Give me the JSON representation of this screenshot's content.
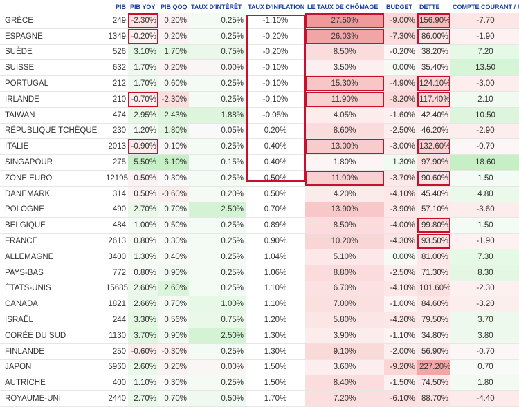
{
  "headers": {
    "pib": "PIB",
    "pib_yoy": "PIB YOY",
    "pib_qoq": "PIB QOQ",
    "taux_interet": "TAUX D'INTÉRÊT",
    "taux_inflation": "TAUX D'INFLATION",
    "chomage": "LE TAUX DE CHÔMAGE",
    "budget": "BUDGET",
    "dette": "DETTE",
    "compte_courant": "COMPTE COURANT / PIB"
  },
  "rows": [
    {
      "pays": "GRÈCE",
      "pib": "249",
      "yoy": "-2.30%",
      "qoq": "0.20%",
      "taux": "0.25%",
      "infl": "-1.10%",
      "chomage": "27.50%",
      "budget": "-9.00%",
      "dette": "156.90%",
      "cc": "-7.70",
      "c": {
        "yoy": "#fde3e3",
        "qoq": "#fbf3f3",
        "taux": "#f4fbf4",
        "chomage": "#f0999b",
        "budget": "#fcd6d6",
        "dette": "#f9bcbc",
        "cc": "#fde6e6"
      },
      "b": {
        "yoy": true,
        "chomage": true,
        "dette": true
      }
    },
    {
      "pays": "ESPAGNE",
      "pib": "1349",
      "yoy": "-0.20%",
      "qoq": "0.20%",
      "taux": "0.25%",
      "infl": "-0.20%",
      "chomage": "26.03%",
      "budget": "-7.30%",
      "dette": "86.00%",
      "cc": "-1.90",
      "c": {
        "yoy": "#fdf2f2",
        "qoq": "#fbf3f3",
        "taux": "#f4fbf4",
        "chomage": "#f2a5a6",
        "budget": "#fcdcdc",
        "dette": "#fde5e5",
        "cc": "#fdf1f1"
      },
      "b": {
        "yoy": true,
        "chomage": true,
        "dette": true
      }
    },
    {
      "pays": "SUÈDE",
      "pib": "526",
      "yoy": "3.10%",
      "qoq": "1.70%",
      "taux": "0.75%",
      "infl": "-0.20%",
      "chomage": "8.50%",
      "budget": "-0.20%",
      "dette": "38.20%",
      "cc": "7.20",
      "c": {
        "yoy": "#e5f8e5",
        "qoq": "#e4f8e4",
        "taux": "#e9f8e9",
        "chomage": "#fbdcdc",
        "budget": "#fdf6f6",
        "dette": "#fdf2f2",
        "cc": "#e6f8e6"
      },
      "b": {}
    },
    {
      "pays": "SUISSE",
      "pib": "632",
      "yoy": "1.70%",
      "qoq": "0.20%",
      "taux": "0.00%",
      "infl": "-0.10%",
      "chomage": "3.50%",
      "budget": "0.00%",
      "dette": "35.40%",
      "cc": "13.50",
      "c": {
        "yoy": "#eff9ef",
        "qoq": "#fbf3f3",
        "taux": "#fbf6f6",
        "chomage": "#fcefef",
        "budget": "#f5faf5",
        "dette": "#fdf3f3",
        "cc": "#d6f4d6"
      },
      "b": {}
    },
    {
      "pays": "PORTUGAL",
      "pib": "212",
      "yoy": "1.70%",
      "qoq": "0.60%",
      "taux": "0.25%",
      "infl": "-0.10%",
      "chomage": "15.30%",
      "budget": "-4.90%",
      "dette": "124.10%",
      "cc": "-3.00",
      "c": {
        "yoy": "#eff9ef",
        "qoq": "#f5faf5",
        "taux": "#f4fbf4",
        "chomage": "#f8c6c6",
        "budget": "#fce3e3",
        "dette": "#fbd3d3",
        "cc": "#fdeeee"
      },
      "b": {
        "chomage": true,
        "dette": true
      }
    },
    {
      "pays": "IRLANDE",
      "pib": "210",
      "yoy": "-0.70%",
      "qoq": "-2.30%",
      "taux": "0.25%",
      "infl": "-0.10%",
      "chomage": "11.90%",
      "budget": "-8.20%",
      "dette": "117.40%",
      "cc": "2.10",
      "c": {
        "yoy": "#fdeded",
        "qoq": "#fbdede",
        "taux": "#f4fbf4",
        "chomage": "#f9d0d0",
        "budget": "#fcd9d9",
        "dette": "#fbd7d7",
        "cc": "#f1faf1"
      },
      "b": {
        "yoy": true,
        "chomage": true,
        "dette": true
      }
    },
    {
      "pays": "TAIWAN",
      "pib": "474",
      "yoy": "2.95%",
      "qoq": "2.43%",
      "taux": "1.88%",
      "infl": "-0.05%",
      "chomage": "4.05%",
      "budget": "-1.60%",
      "dette": "42.40%",
      "cc": "10.50",
      "c": {
        "yoy": "#e7f8e7",
        "qoq": "#dcf5dc",
        "taux": "#dcf5dc",
        "chomage": "#fcecec",
        "budget": "#fdf0f0",
        "dette": "#fdf0f0",
        "cc": "#dcf5dc"
      },
      "b": {}
    },
    {
      "pays": "RÉPUBLIQUE TCHÈQUE",
      "pib": "230",
      "yoy": "1.20%",
      "qoq": "1.80%",
      "taux": "0.05%",
      "infl": "0.20%",
      "chomage": "8.60%",
      "budget": "-2.50%",
      "dette": "46.20%",
      "cc": "-2.90",
      "c": {
        "yoy": "#f2faf2",
        "qoq": "#e3f7e3",
        "taux": "#f9f9f9",
        "chomage": "#fbdcdc",
        "budget": "#fdeded",
        "dette": "#fdeeee",
        "cc": "#fdeeee"
      },
      "b": {}
    },
    {
      "pays": "ITALIE",
      "pib": "2013",
      "yoy": "-0.90%",
      "qoq": "0.10%",
      "taux": "0.25%",
      "infl": "0.40%",
      "chomage": "13.00%",
      "budget": "-3.00%",
      "dette": "132.60%",
      "cc": "-0.70",
      "c": {
        "yoy": "#fdeaea",
        "qoq": "#f9f6f6",
        "taux": "#f4fbf4",
        "chomage": "#f9cccc",
        "budget": "#fdebeb",
        "dette": "#fbcfcf",
        "cc": "#fdf6f6"
      },
      "b": {
        "yoy": true,
        "chomage": true,
        "dette": true
      }
    },
    {
      "pays": "SINGAPOUR",
      "pib": "275",
      "yoy": "5.50%",
      "qoq": "6.10%",
      "taux": "0.15%",
      "infl": "0.40%",
      "chomage": "1.80%",
      "budget": "1.30%",
      "dette": "97.90%",
      "cc": "18.60",
      "c": {
        "yoy": "#c8f0c8",
        "qoq": "#c6efc6",
        "taux": "#f7fbf7",
        "chomage": "#fdf5f5",
        "budget": "#f1faf1",
        "dette": "#fce0e0",
        "cc": "#c6efc6"
      },
      "b": {}
    },
    {
      "pays": "ZONE EURO",
      "pib": "12195",
      "yoy": "0.50%",
      "qoq": "0.30%",
      "taux": "0.25%",
      "infl": "0.50%",
      "chomage": "11.90%",
      "budget": "-3.70%",
      "dette": "90.60%",
      "cc": "1.50",
      "c": {
        "yoy": "#fbf3f3",
        "qoq": "#f8f9f8",
        "taux": "#f4fbf4",
        "chomage": "#f9d0d0",
        "budget": "#fde8e8",
        "dette": "#fce3e3",
        "cc": "#f4fbf4"
      },
      "b": {
        "chomage": true,
        "dette": true
      }
    },
    {
      "pays": "DANEMARK",
      "pib": "314",
      "yoy": "0.50%",
      "qoq": "-0.60%",
      "taux": "0.20%",
      "infl": "0.50%",
      "chomage": "4.20%",
      "budget": "-4.10%",
      "dette": "45.40%",
      "cc": "4.80",
      "c": {
        "yoy": "#fbf3f3",
        "qoq": "#fdeeee",
        "taux": "#f5faf5",
        "chomage": "#fcebeb",
        "budget": "#fde6e6",
        "dette": "#fdefef",
        "cc": "#ebf9eb"
      },
      "b": {}
    },
    {
      "pays": "POLOGNE",
      "pib": "490",
      "yoy": "2.70%",
      "qoq": "0.70%",
      "taux": "2.50%",
      "infl": "0.70%",
      "chomage": "13.90%",
      "budget": "-3.90%",
      "dette": "57.10%",
      "cc": "-3.60",
      "c": {
        "yoy": "#e9f8e9",
        "qoq": "#f3faf3",
        "taux": "#d4f3d4",
        "chomage": "#f8c8c8",
        "budget": "#fde7e7",
        "dette": "#fdebeb",
        "cc": "#fdecec"
      },
      "b": {}
    },
    {
      "pays": "BELGIQUE",
      "pib": "484",
      "yoy": "1.00%",
      "qoq": "0.50%",
      "taux": "0.25%",
      "infl": "0.89%",
      "chomage": "8.50%",
      "budget": "-4.00%",
      "dette": "99.80%",
      "cc": "1.50",
      "c": {
        "yoy": "#f4faf4",
        "qoq": "#f6f9f6",
        "taux": "#f4fbf4",
        "chomage": "#fbdcdc",
        "budget": "#fde6e6",
        "dette": "#fce0e0",
        "cc": "#f4fbf4"
      },
      "b": {
        "dette": true
      }
    },
    {
      "pays": "FRANCE",
      "pib": "2613",
      "yoy": "0.80%",
      "qoq": "0.30%",
      "taux": "0.25%",
      "infl": "0.90%",
      "chomage": "10.20%",
      "budget": "-4.30%",
      "dette": "93.50%",
      "cc": "-1.90",
      "c": {
        "yoy": "#f7f9f7",
        "qoq": "#f8f9f8",
        "taux": "#f4fbf4",
        "chomage": "#fad5d5",
        "budget": "#fde5e5",
        "dette": "#fce2e2",
        "cc": "#fdf1f1"
      },
      "b": {
        "dette": true
      }
    },
    {
      "pays": "ALLEMAGNE",
      "pib": "3400",
      "yoy": "1.30%",
      "qoq": "0.40%",
      "taux": "0.25%",
      "infl": "1.04%",
      "chomage": "5.10%",
      "budget": "0.00%",
      "dette": "81.00%",
      "cc": "7.30",
      "c": {
        "yoy": "#f2faf2",
        "qoq": "#f7f9f7",
        "taux": "#f4fbf4",
        "chomage": "#fce8e8",
        "budget": "#f5faf5",
        "dette": "#fde7e7",
        "cc": "#e6f8e6"
      },
      "b": {}
    },
    {
      "pays": "PAYS-BAS",
      "pib": "772",
      "yoy": "0.80%",
      "qoq": "0.90%",
      "taux": "0.25%",
      "infl": "1.06%",
      "chomage": "8.80%",
      "budget": "-2.50%",
      "dette": "71.30%",
      "cc": "8.30",
      "c": {
        "yoy": "#f7f9f7",
        "qoq": "#eff9ef",
        "taux": "#f4fbf4",
        "chomage": "#fbdbdb",
        "budget": "#fdeded",
        "dette": "#fdeaea",
        "cc": "#e3f7e3"
      },
      "b": {}
    },
    {
      "pays": "ÉTATS-UNIS",
      "pib": "15685",
      "yoy": "2.60%",
      "qoq": "2.60%",
      "taux": "0.25%",
      "infl": "1.10%",
      "chomage": "6.70%",
      "budget": "-4.10%",
      "dette": "101.60%",
      "cc": "-2.30",
      "c": {
        "yoy": "#eaf8ea",
        "qoq": "#dbf5db",
        "taux": "#f4fbf4",
        "chomage": "#fbe1e1",
        "budget": "#fde6e6",
        "dette": "#fcdfdf",
        "cc": "#fdf0f0"
      },
      "b": {}
    },
    {
      "pays": "CANADA",
      "pib": "1821",
      "yoy": "2.66%",
      "qoq": "0.70%",
      "taux": "1.00%",
      "infl": "1.10%",
      "chomage": "7.00%",
      "budget": "-1.00%",
      "dette": "84.60%",
      "cc": "-3.20",
      "c": {
        "yoy": "#eaf8ea",
        "qoq": "#f3faf3",
        "taux": "#e6f8e6",
        "chomage": "#fbe0e0",
        "budget": "#fdf3f3",
        "dette": "#fde6e6",
        "cc": "#fdeeee"
      },
      "b": {}
    },
    {
      "pays": "ISRAËL",
      "pib": "244",
      "yoy": "3.30%",
      "qoq": "0.56%",
      "taux": "0.75%",
      "infl": "1.20%",
      "chomage": "5.80%",
      "budget": "-4.20%",
      "dette": "79.50%",
      "cc": "3.70",
      "c": {
        "yoy": "#e3f7e3",
        "qoq": "#f6f9f6",
        "taux": "#e9f8e9",
        "chomage": "#fce5e5",
        "budget": "#fde6e6",
        "dette": "#fde8e8",
        "cc": "#eef9ee"
      },
      "b": {}
    },
    {
      "pays": "CORÉE DU SUD",
      "pib": "1130",
      "yoy": "3.70%",
      "qoq": "0.90%",
      "taux": "2.50%",
      "infl": "1.30%",
      "chomage": "3.90%",
      "budget": "-1.10%",
      "dette": "34.80%",
      "cc": "3.80",
      "c": {
        "yoy": "#dff6df",
        "qoq": "#eff9ef",
        "taux": "#d4f3d4",
        "chomage": "#fcecec",
        "budget": "#fdf3f3",
        "dette": "#fdf3f3",
        "cc": "#eef9ee"
      },
      "b": {}
    },
    {
      "pays": "FINLANDE",
      "pib": "250",
      "yoy": "-0.60%",
      "qoq": "-0.30%",
      "taux": "0.25%",
      "infl": "1.30%",
      "chomage": "9.10%",
      "budget": "-2.00%",
      "dette": "56.90%",
      "cc": "-0.70",
      "c": {
        "yoy": "#fdeeee",
        "qoq": "#fdf1f1",
        "taux": "#f4fbf4",
        "chomage": "#fad9d9",
        "budget": "#fdeeee",
        "dette": "#fdebeb",
        "cc": "#fdf6f6"
      },
      "b": {}
    },
    {
      "pays": "JAPON",
      "pib": "5960",
      "yoy": "2.60%",
      "qoq": "0.20%",
      "taux": "0.00%",
      "infl": "1.50%",
      "chomage": "3.60%",
      "budget": "-9.20%",
      "dette": "227.20%",
      "cc": "0.70",
      "c": {
        "yoy": "#eaf8ea",
        "qoq": "#fbf3f3",
        "taux": "#fbf6f6",
        "chomage": "#fceeee",
        "budget": "#fcd5d5",
        "dette": "#f4a6a7",
        "cc": "#f7faf7"
      },
      "b": {}
    },
    {
      "pays": "AUTRICHE",
      "pib": "400",
      "yoy": "1.10%",
      "qoq": "0.30%",
      "taux": "0.25%",
      "infl": "1.50%",
      "chomage": "8.40%",
      "budget": "-1.50%",
      "dette": "74.50%",
      "cc": "1.80",
      "c": {
        "yoy": "#f3faf3",
        "qoq": "#f8f9f8",
        "taux": "#f4fbf4",
        "chomage": "#fbdddd",
        "budget": "#fdf0f0",
        "dette": "#fde9e9",
        "cc": "#f2faf2"
      },
      "b": {}
    },
    {
      "pays": "ROYAUME-UNI",
      "pib": "2440",
      "yoy": "2.70%",
      "qoq": "0.70%",
      "taux": "0.50%",
      "infl": "1.70%",
      "chomage": "7.20%",
      "budget": "-6.10%",
      "dette": "88.70%",
      "cc": "-4.40",
      "c": {
        "yoy": "#e9f8e9",
        "qoq": "#f3faf3",
        "taux": "#eff9ef",
        "chomage": "#fbdfdf",
        "budget": "#fcdfdf",
        "dette": "#fde4e4",
        "cc": "#fdebeb"
      },
      "b": {}
    }
  ]
}
